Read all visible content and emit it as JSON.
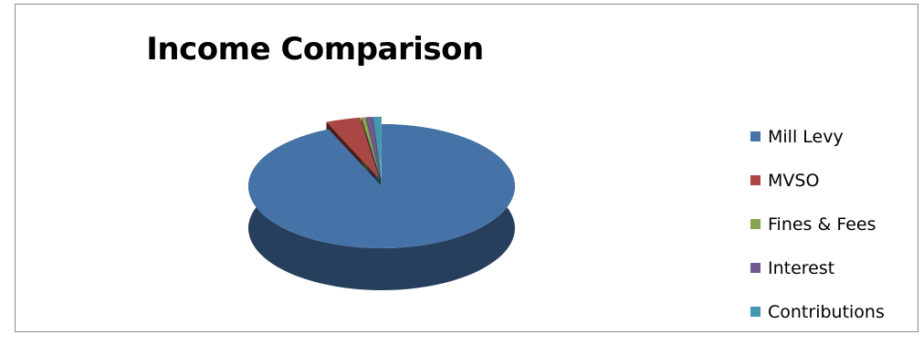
{
  "chart_data": {
    "type": "pie",
    "style": "3d-exploded",
    "title": "Income Comparison",
    "series": [
      {
        "name": "Mill Levy",
        "value": 93.5,
        "color": "#4572A7"
      },
      {
        "name": "MVSO",
        "value": 4.2,
        "color": "#AA4643"
      },
      {
        "name": "Fines & Fees",
        "value": 0.5,
        "color": "#89A54E"
      },
      {
        "name": "Interest",
        "value": 0.8,
        "color": "#71588F"
      },
      {
        "name": "Contributions",
        "value": 1.0,
        "color": "#4198AF"
      }
    ],
    "legend_position": "right"
  }
}
